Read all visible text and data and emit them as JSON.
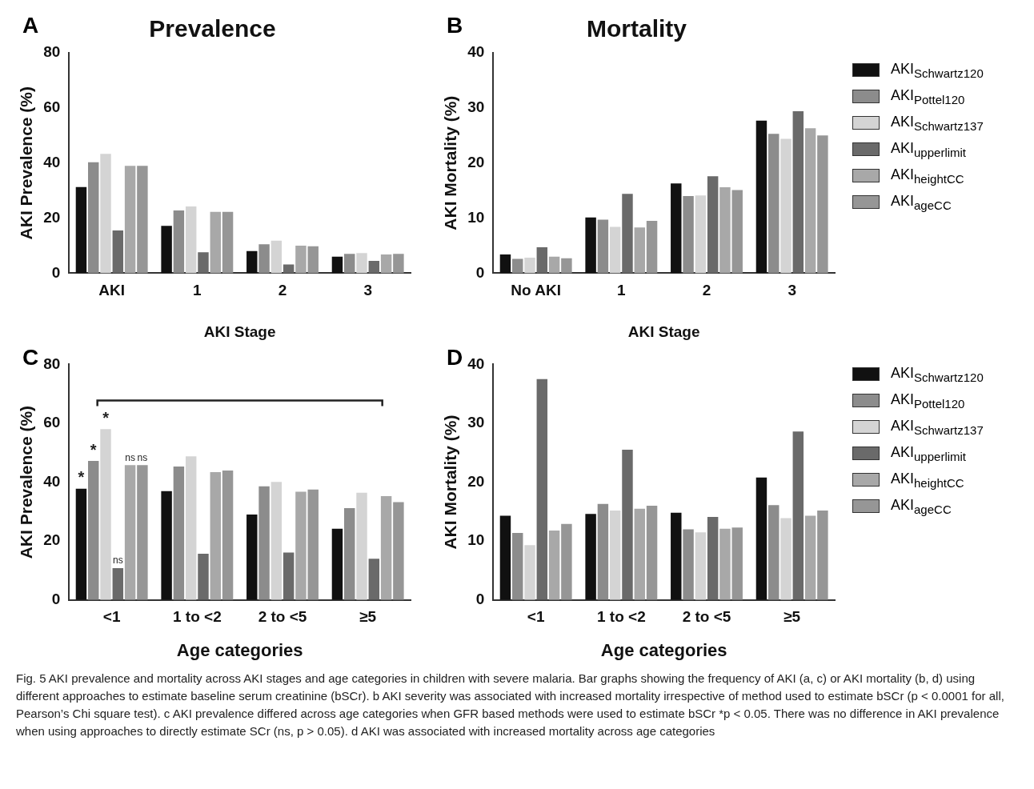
{
  "chart_data": [
    {
      "type": "bar",
      "title": "Prevalence",
      "ylabel": "AKI Prevalence (%)",
      "xlabel": "AKI Stage",
      "annotations": [
        "A"
      ],
      "categories": [
        "AKI",
        "1",
        "2",
        "3"
      ],
      "ylim": [
        0,
        80
      ],
      "yticks": [
        0,
        20,
        40,
        60,
        80
      ],
      "series": [
        {
          "color": "#111111",
          "values": [
            31.3,
            17.2,
            8.0,
            6.0
          ]
        },
        {
          "color": "#8c8c8c",
          "values": [
            40.3,
            22.8,
            10.5,
            7.0
          ]
        },
        {
          "color": "#d4d4d4",
          "values": [
            43.3,
            24.2,
            11.8,
            7.3
          ]
        },
        {
          "color": "#6a6a6a",
          "values": [
            15.5,
            7.6,
            3.2,
            4.5
          ]
        },
        {
          "color": "#a8a8a8",
          "values": [
            39.0,
            22.3,
            10.0,
            6.8
          ]
        },
        {
          "color": "#969696",
          "values": [
            39.0,
            22.3,
            9.8,
            7.0
          ]
        }
      ]
    },
    {
      "type": "bar",
      "title": "Mortality",
      "ylabel": "AKI Mortality (%)",
      "xlabel": "AKI Stage",
      "annotations": [
        "B"
      ],
      "categories": [
        "No AKI",
        "1",
        "2",
        "3"
      ],
      "ylim": [
        0,
        40
      ],
      "yticks": [
        0,
        10,
        20,
        30,
        40
      ],
      "legend": "right",
      "series": [
        {
          "name": "AKI$_{Schwartz120}$",
          "color": "#111111",
          "values": [
            3.4,
            10.1,
            16.3,
            27.7
          ]
        },
        {
          "name": "AKI$_{Pottel120}$",
          "color": "#8c8c8c",
          "values": [
            2.6,
            9.7,
            14.0,
            25.3
          ]
        },
        {
          "name": "AKI$_{Schwartz137}$",
          "color": "#d4d4d4",
          "values": [
            2.8,
            8.4,
            14.1,
            24.4
          ]
        },
        {
          "name": "AKI$_{upperlimit}$",
          "color": "#6a6a6a",
          "values": [
            4.7,
            14.4,
            17.6,
            29.4
          ]
        },
        {
          "name": "AKI$_{heightCC}$",
          "color": "#a8a8a8",
          "values": [
            3.0,
            8.3,
            15.6,
            26.3
          ]
        },
        {
          "name": "AKI$_{ageCC}$",
          "color": "#969696",
          "values": [
            2.7,
            9.5,
            15.1,
            25.0
          ]
        }
      ]
    },
    {
      "type": "bar",
      "ylabel": "AKI Prevalence (%)",
      "xlabel": "Age categories",
      "categories": [
        "<1",
        "1 to <2",
        "2 to <5",
        "≥5"
      ],
      "ylim": [
        0,
        80
      ],
      "yticks": [
        0,
        20,
        40,
        60,
        80
      ],
      "annotations": [
        "C",
        {
          "text": "*",
          "x": "<1",
          "y": 37.8
        },
        {
          "text": "*",
          "x": "<1",
          "y": 47.2
        },
        {
          "text": "*",
          "x": "<1",
          "y": 58.0
        },
        {
          "text": "ns",
          "x": "<1",
          "y": 10.8
        },
        {
          "text": "ns",
          "x": "<1",
          "y": 45.8
        },
        {
          "text": "ns",
          "x": "<1",
          "y": 45.8
        }
      ],
      "series": [
        {
          "color": "#111111",
          "values": [
            37.8,
            37.0,
            29.0,
            24.2
          ]
        },
        {
          "color": "#8c8c8c",
          "values": [
            47.2,
            45.3,
            38.6,
            31.2
          ]
        },
        {
          "color": "#d4d4d4",
          "values": [
            58.0,
            48.8,
            40.1,
            36.4
          ]
        },
        {
          "color": "#6a6a6a",
          "values": [
            10.8,
            15.7,
            16.1,
            14.0
          ]
        },
        {
          "color": "#a8a8a8",
          "values": [
            45.8,
            43.4,
            36.8,
            35.3
          ]
        },
        {
          "color": "#969696",
          "values": [
            45.8,
            44.0,
            37.5,
            33.2
          ]
        }
      ]
    },
    {
      "type": "bar",
      "ylabel": "AKI Mortality (%)",
      "xlabel": "Age categories",
      "categories": [
        "<1",
        "1 to <2",
        "2 to <5",
        "≥5"
      ],
      "ylim": [
        0,
        40
      ],
      "yticks": [
        0,
        10,
        20,
        30,
        40
      ],
      "legend": "right",
      "annotations": [
        "D",
        "Fig. 5 AKI prevalence and mortality across AKI stages and age categories in children with severe malaria. Bar graphs showing the frequency of AKI (a, c) or AKI mortality (b, d) using different approaches to estimate baseline serum creatinine (bSCr). b AKI severity was associated with increased mortality irrespective of method used to estimate bSCr (p < 0.0001 for all, Pearson’s Chi square test). c AKI prevalence differed across age categories when GFR based methods were used to estimate bSCr *p < 0.05. There was no difference in AKI prevalence when using approaches to directly estimate SCr (ns, p > 0.05). d AKI was associated with increased mortality across age categories"
      ],
      "series": [
        {
          "name": "AKI$_{Schwartz120}$",
          "color": "#111111",
          "values": [
            14.3,
            14.6,
            14.8,
            20.8
          ]
        },
        {
          "name": "AKI$_{Pottel120}$",
          "color": "#8c8c8c",
          "values": [
            11.4,
            16.3,
            12.0,
            16.1
          ]
        },
        {
          "name": "AKI$_{Schwartz137}$",
          "color": "#d4d4d4",
          "values": [
            9.3,
            15.2,
            11.5,
            13.9
          ]
        },
        {
          "name": "AKI$_{upperlimit}$",
          "color": "#6a6a6a",
          "values": [
            37.5,
            25.5,
            14.1,
            28.6
          ]
        },
        {
          "name": "AKI$_{heightCC}$",
          "color": "#a8a8a8",
          "values": [
            11.8,
            15.5,
            12.1,
            14.3
          ]
        },
        {
          "name": "AKI$_{ageCC}$",
          "color": "#969696",
          "values": [
            12.9,
            16.0,
            12.3,
            15.2
          ]
        }
      ]
    }
  ]
}
